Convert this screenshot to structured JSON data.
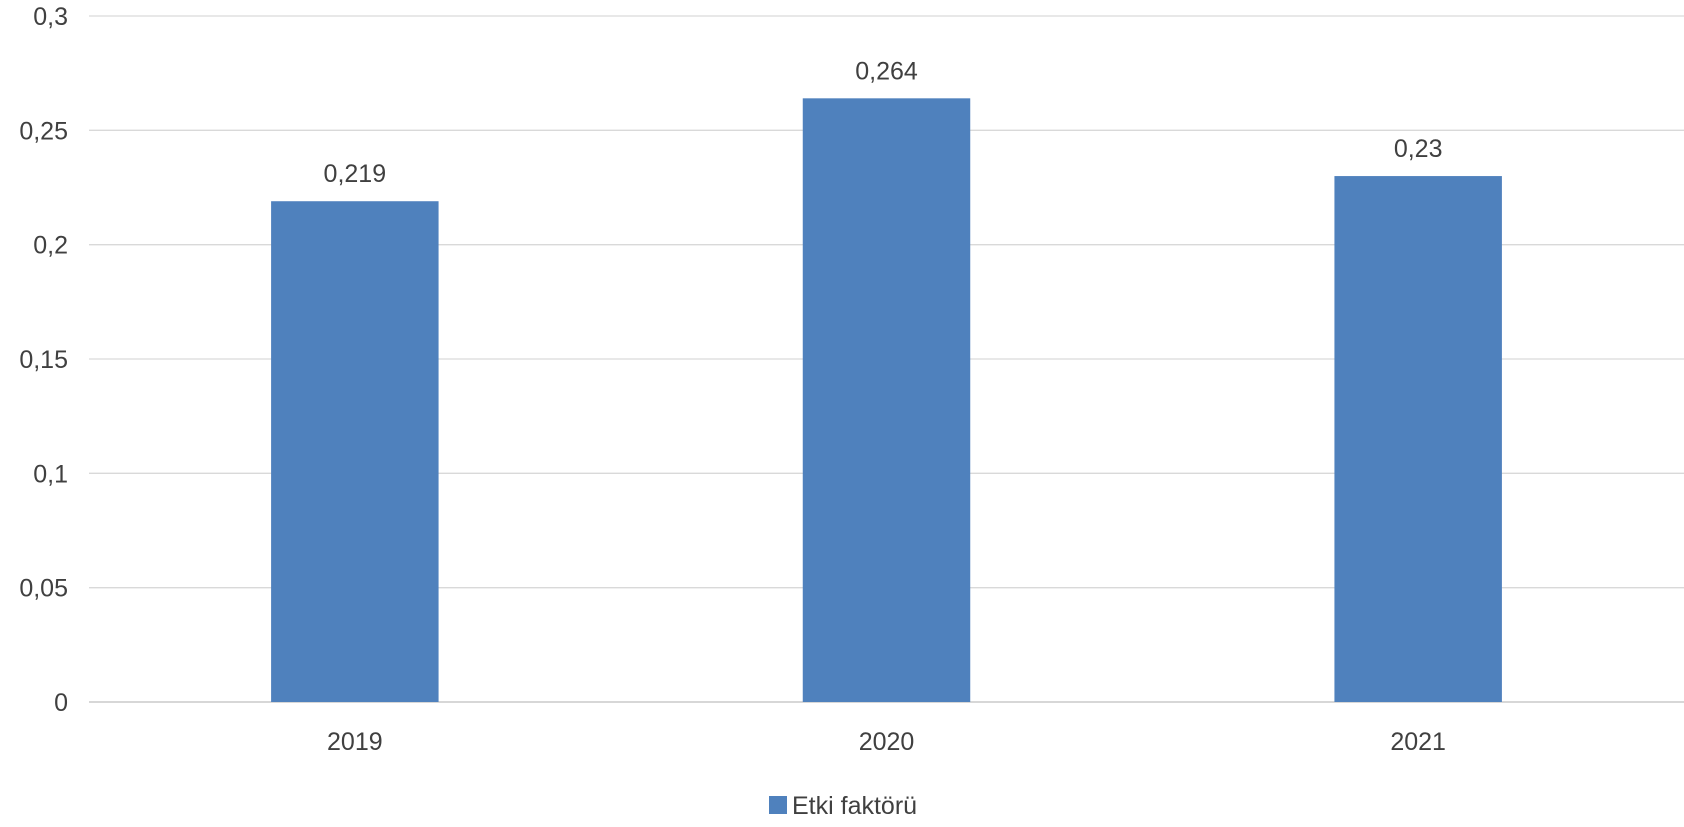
{
  "chart_data": {
    "type": "bar",
    "categories": [
      "2019",
      "2020",
      "2021"
    ],
    "series": [
      {
        "name": "Etki faktörü",
        "values": [
          0.219,
          0.264,
          0.23
        ],
        "value_labels": [
          "0,219",
          "0,264",
          "0,23"
        ],
        "color": "#4f81bd"
      }
    ],
    "title": "",
    "xlabel": "",
    "ylabel": "",
    "ylim": [
      0,
      0.3
    ],
    "yticks": [
      0,
      0.05,
      0.1,
      0.15,
      0.2,
      0.25,
      0.3
    ],
    "ytick_labels": [
      "0",
      "0,05",
      "0,1",
      "0,15",
      "0,2",
      "0,25",
      "0,3"
    ],
    "grid": true,
    "legend_position": "bottom"
  },
  "colors": {
    "bar": "#4f81bd",
    "grid": "#d9d9d9",
    "axis": "#bfbfbf",
    "text": "#404040"
  }
}
